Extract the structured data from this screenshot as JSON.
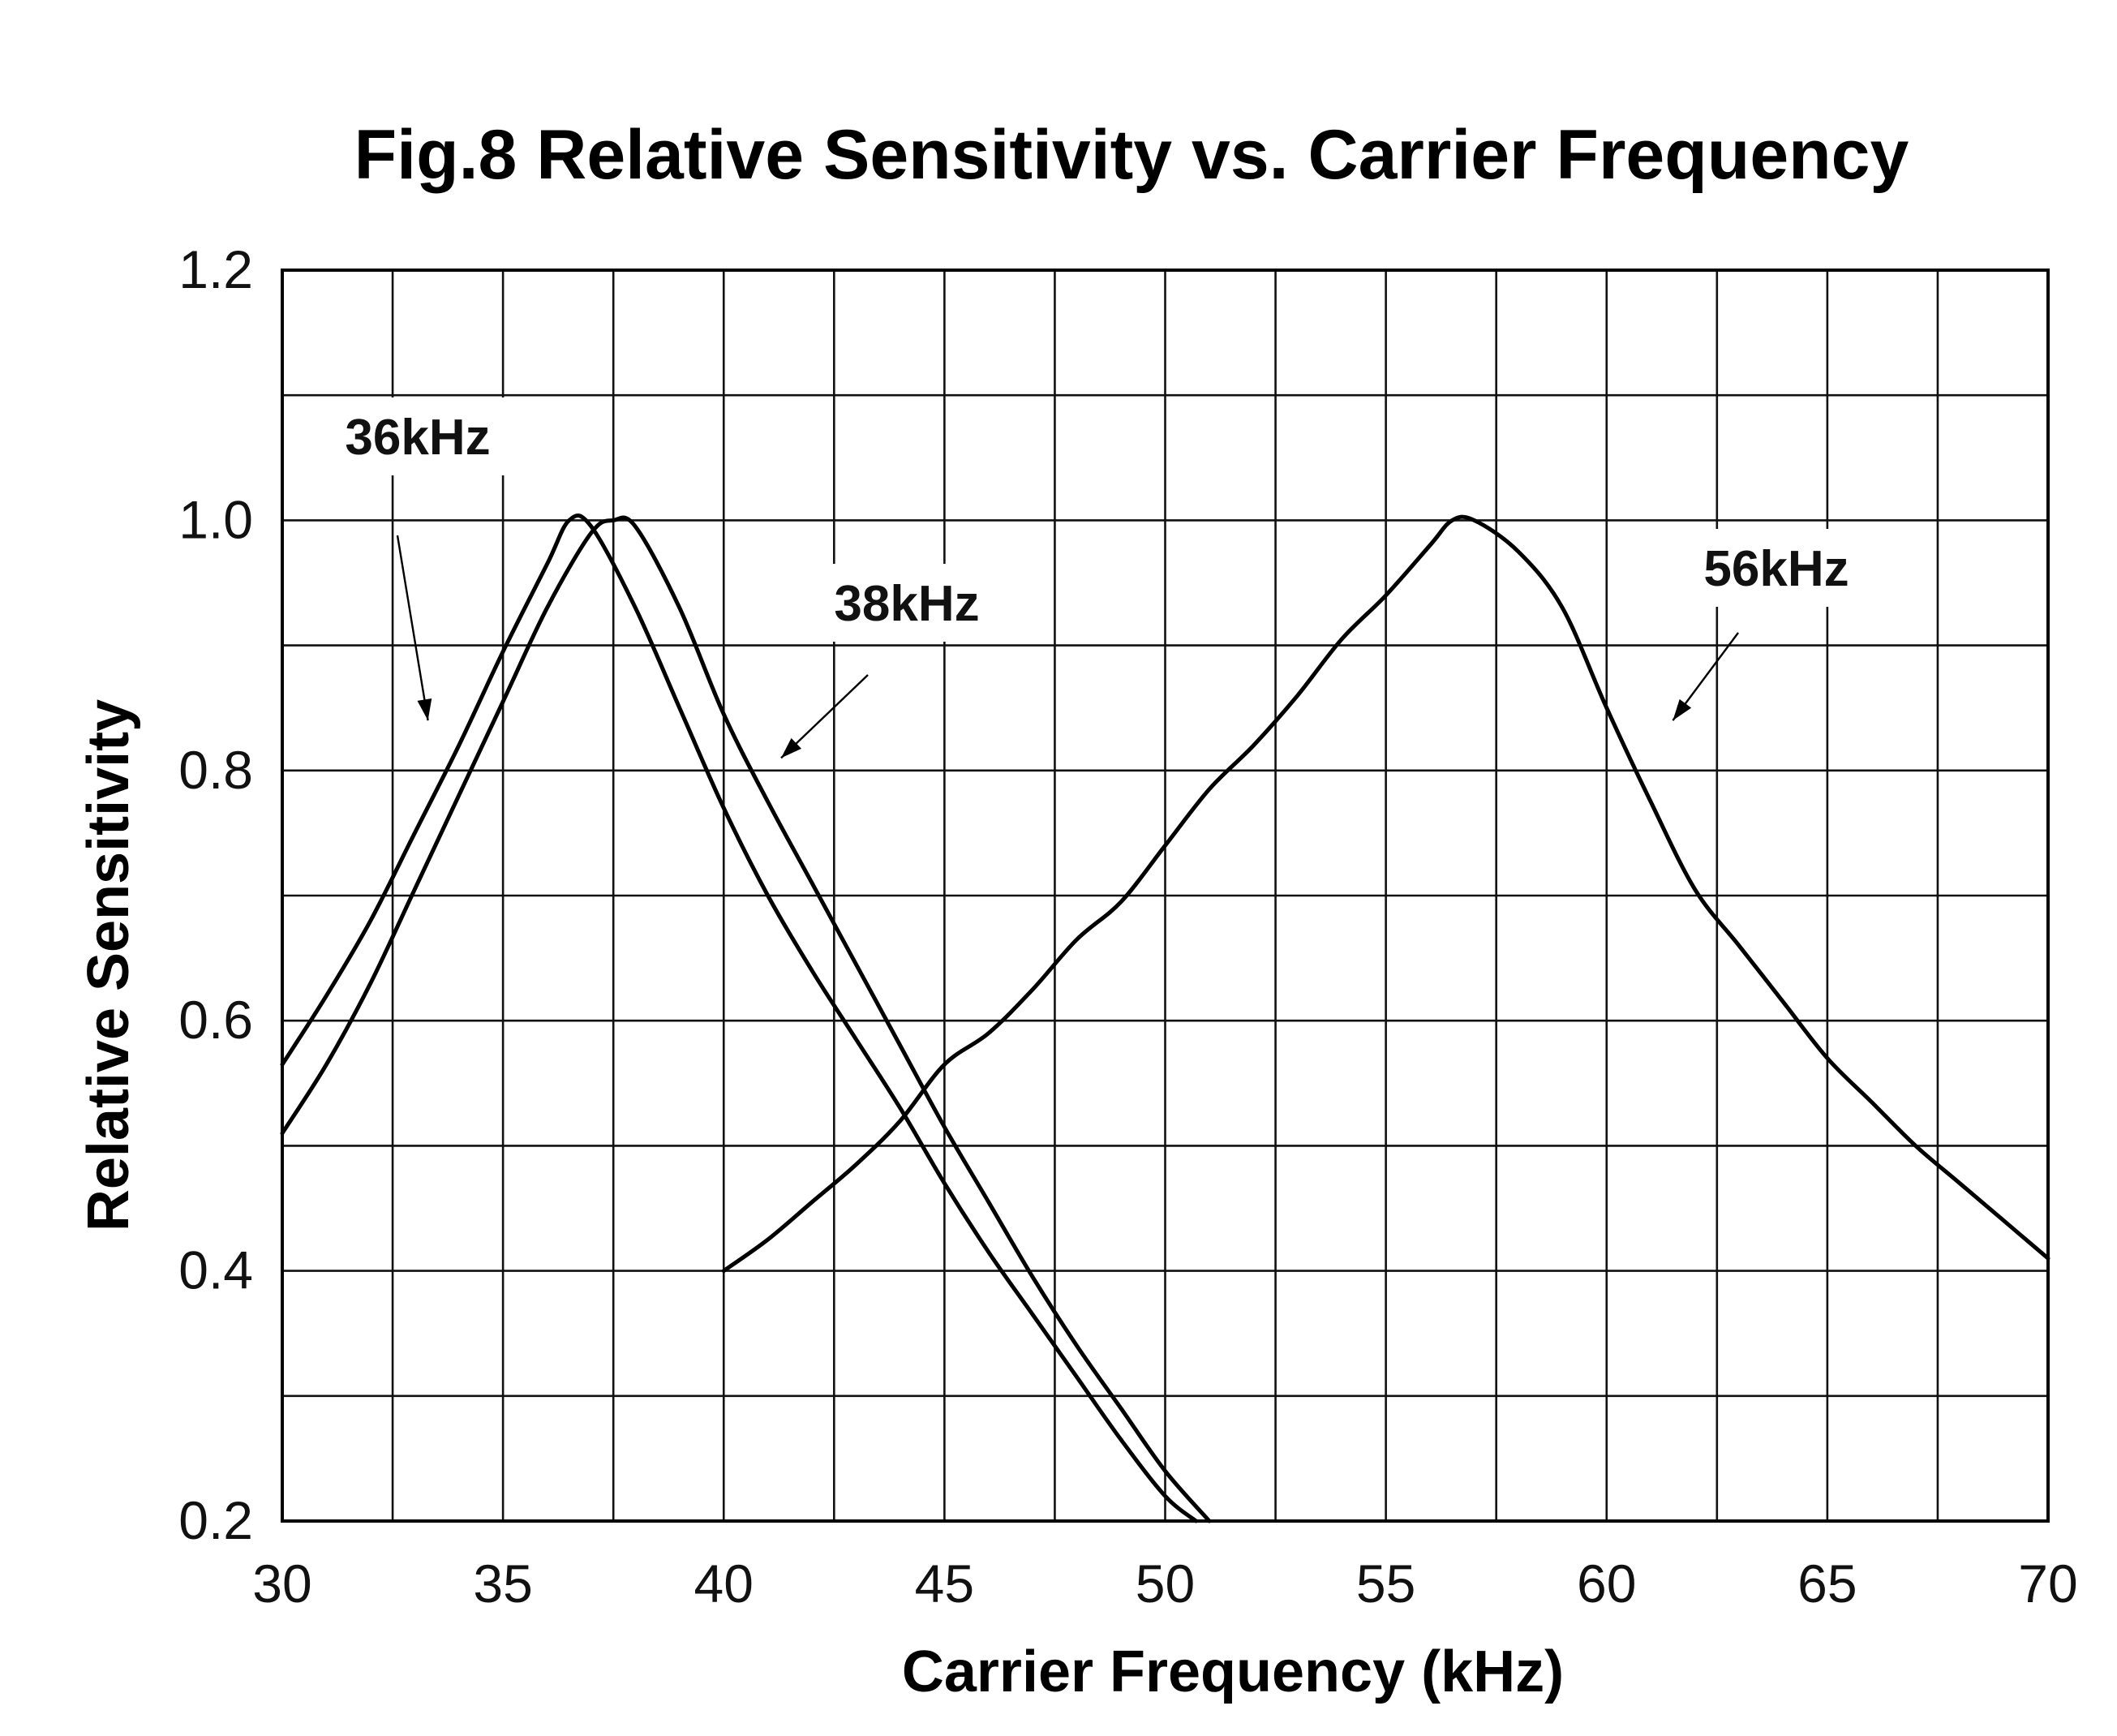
{
  "chart_data": {
    "type": "line",
    "title": "Fig.8 Relative Sensitivity vs. Carrier Frequency",
    "xlabel": "Carrier Frequency (kHz)",
    "ylabel": "Relative Sensitivity",
    "xlim": [
      30,
      70
    ],
    "ylim": [
      0.2,
      1.2
    ],
    "x_ticks": [
      "30",
      "35",
      "40",
      "45",
      "50",
      "55",
      "60",
      "65",
      "70"
    ],
    "y_ticks": [
      "0.2",
      "0.4",
      "0.6",
      "0.8",
      "1.0",
      "1.2"
    ],
    "grid": true,
    "x_grid_step": 2.5,
    "y_grid_step": 0.1,
    "series": [
      {
        "name": "36kHz",
        "x": [
          30,
          31,
          32,
          33,
          34,
          35,
          36,
          36.5,
          37,
          38,
          39,
          40,
          41,
          42,
          43,
          44,
          45,
          46,
          47,
          48,
          49,
          50,
          50.7
        ],
        "y": [
          0.565,
          0.62,
          0.68,
          0.75,
          0.82,
          0.895,
          0.965,
          1.0,
          0.995,
          0.93,
          0.85,
          0.77,
          0.7,
          0.64,
          0.585,
          0.53,
          0.47,
          0.415,
          0.365,
          0.315,
          0.265,
          0.22,
          0.2
        ]
      },
      {
        "name": "38kHz",
        "x": [
          30,
          31,
          32,
          33,
          34,
          35,
          36,
          37,
          37.5,
          38,
          39,
          40,
          41,
          42,
          43,
          44,
          45,
          46,
          47,
          48,
          49,
          50,
          51
        ],
        "y": [
          0.51,
          0.565,
          0.63,
          0.705,
          0.78,
          0.855,
          0.93,
          0.99,
          1.0,
          0.995,
          0.93,
          0.845,
          0.775,
          0.71,
          0.645,
          0.58,
          0.515,
          0.455,
          0.395,
          0.34,
          0.29,
          0.24,
          0.2
        ]
      },
      {
        "name": "56kHz",
        "x": [
          40,
          41,
          42,
          43,
          44,
          45,
          46,
          47,
          48,
          49,
          50,
          51,
          52,
          53,
          54,
          55,
          56,
          56.5,
          57,
          58,
          59,
          60,
          61,
          62,
          63,
          64,
          65,
          66,
          67,
          68,
          69,
          70
        ],
        "y": [
          0.4,
          0.425,
          0.455,
          0.485,
          0.52,
          0.565,
          0.59,
          0.625,
          0.665,
          0.695,
          0.74,
          0.785,
          0.82,
          0.86,
          0.905,
          0.94,
          0.98,
          1.0,
          1.0,
          0.975,
          0.93,
          0.85,
          0.775,
          0.705,
          0.66,
          0.615,
          0.57,
          0.535,
          0.5,
          0.47,
          0.44,
          0.41
        ]
      }
    ],
    "annotations": [
      {
        "text": "36kHz",
        "points_to_series": "36kHz",
        "arrow_tip": [
          33.3,
          0.84
        ]
      },
      {
        "text": "38kHz",
        "points_to_series": "38kHz",
        "arrow_tip": [
          41.3,
          0.81
        ]
      },
      {
        "text": "56kHz",
        "points_to_series": "56kHz",
        "arrow_tip": [
          61.5,
          0.84
        ]
      }
    ]
  }
}
